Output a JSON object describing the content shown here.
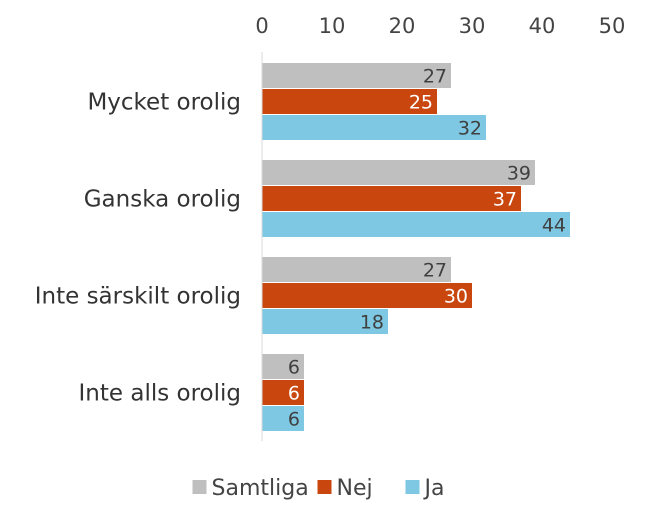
{
  "chart_data": {
    "type": "bar",
    "orientation": "horizontal",
    "title": "",
    "xlabel": "",
    "ylabel": "",
    "xlim": [
      0,
      50
    ],
    "x_ticks": [
      0,
      10,
      20,
      30,
      40,
      50
    ],
    "x_axis_position": "top",
    "grid": false,
    "legend_position": "bottom",
    "categories": [
      "Mycket orolig",
      "Ganska orolig",
      "Inte särskilt orolig",
      "Inte alls orolig"
    ],
    "series": [
      {
        "name": "Samtliga",
        "color": "#BFBFBF",
        "label_color": "#404040",
        "values": [
          27,
          39,
          27,
          6
        ]
      },
      {
        "name": "Nej",
        "color": "#C9470F",
        "label_color": "#FFFFFF",
        "values": [
          25,
          37,
          30,
          6
        ]
      },
      {
        "name": "Ja",
        "color": "#7EC8E3",
        "label_color": "#404040",
        "values": [
          32,
          44,
          18,
          6
        ]
      }
    ]
  }
}
